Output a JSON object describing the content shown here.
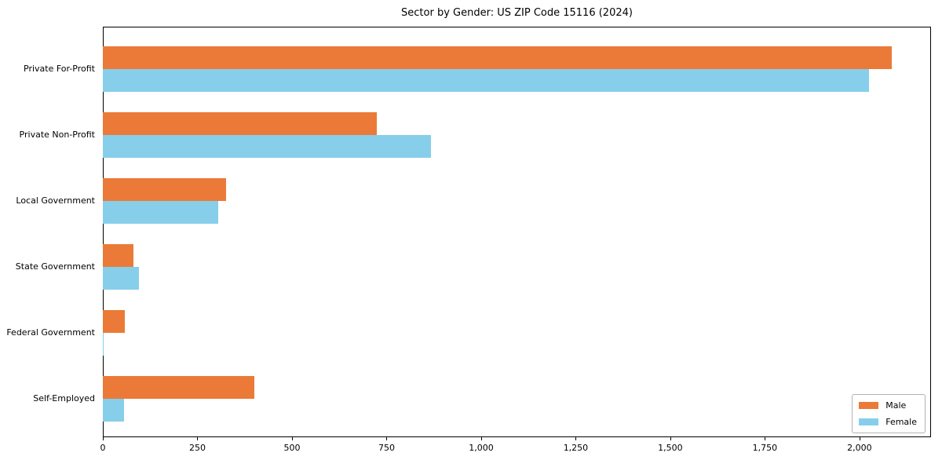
{
  "title": "Sector by Gender: US ZIP Code 15116 (2024)",
  "legend": {
    "male_label": "Male",
    "female_label": "Female"
  },
  "colors": {
    "male": "#EB7A38",
    "female": "#87CEEB",
    "axis": "#000000",
    "legend_border": "#b3b3b3"
  },
  "chart_data": {
    "type": "bar",
    "orientation": "horizontal",
    "title": "Sector by Gender: US ZIP Code 15116 (2024)",
    "xlabel": "",
    "ylabel": "",
    "categories": [
      "Private For-Profit",
      "Private Non-Profit",
      "Local Government",
      "State Government",
      "Federal Government",
      "Self-Employed"
    ],
    "series": [
      {
        "name": "Male",
        "color": "#EB7A38",
        "values": [
          2085,
          724,
          326,
          80,
          59,
          400
        ]
      },
      {
        "name": "Female",
        "color": "#87CEEB",
        "values": [
          2026,
          868,
          304,
          95,
          2,
          55
        ]
      }
    ],
    "xlim": [
      0,
      2189
    ],
    "xticks": [
      0,
      250,
      500,
      750,
      1000,
      1250,
      1500,
      1750,
      2000
    ],
    "xtick_labels": [
      "0",
      "250",
      "500",
      "750",
      "1,000",
      "1,250",
      "1,500",
      "1,750",
      "2,000"
    ],
    "grid": false,
    "legend_position": "lower right"
  }
}
